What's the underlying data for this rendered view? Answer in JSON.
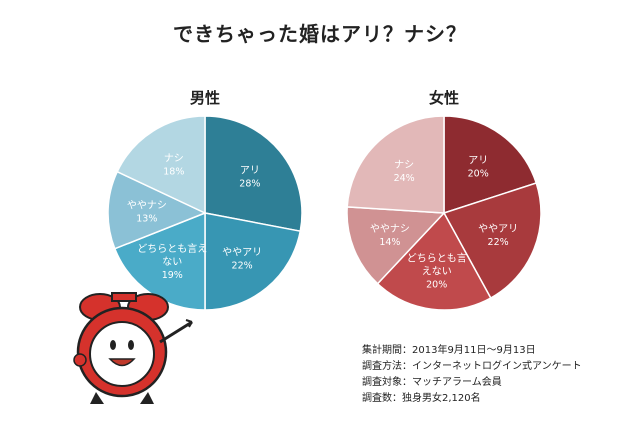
{
  "title": "できちゃった婚はアリ？ナシ？",
  "chart_data": [
    {
      "type": "pie",
      "title": "男性",
      "unit": "%",
      "slices": [
        {
          "label": "アリ",
          "value": 28,
          "color": "#2e7f96"
        },
        {
          "label": "ややアリ",
          "value": 22,
          "color": "#3796b3"
        },
        {
          "label": "どちらとも言え\nない",
          "value": 19,
          "color": "#4aabc8"
        },
        {
          "label": "ややナシ",
          "value": 13,
          "color": "#8bc1d6"
        },
        {
          "label": "ナシ",
          "value": 18,
          "color": "#b3d7e3"
        }
      ]
    },
    {
      "type": "pie",
      "title": "女性",
      "unit": "%",
      "slices": [
        {
          "label": "アリ",
          "value": 20,
          "color": "#8e2b30"
        },
        {
          "label": "ややアリ",
          "value": 22,
          "color": "#a83a3d"
        },
        {
          "label": "どちらとも言\nえない",
          "value": 20,
          "color": "#c04a4c"
        },
        {
          "label": "ややナシ",
          "value": 14,
          "color": "#d09293"
        },
        {
          "label": "ナシ",
          "value": 24,
          "color": "#e2b8b8"
        }
      ]
    }
  ],
  "notes": [
    "集計期間：2013年9月11日～9月13日",
    "調査方法：インターネットログイン式アンケート",
    "調査対象：マッチアラーム会員",
    "調査数：独身男女2,120名"
  ]
}
